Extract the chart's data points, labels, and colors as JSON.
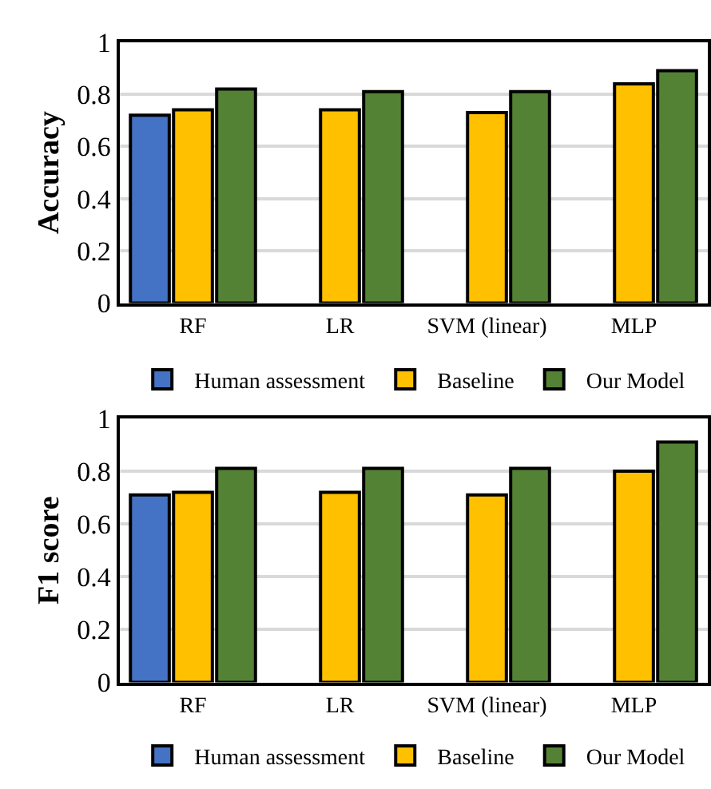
{
  "chart_data": [
    {
      "type": "bar",
      "ylabel": "Accuracy",
      "categories": [
        "RF",
        "LR",
        "SVM (linear)",
        "MLP"
      ],
      "ylim": [
        0,
        1
      ],
      "yticks": [
        0,
        0.2,
        0.4,
        0.6,
        0.8,
        1
      ],
      "grid": "y",
      "legend": "bottom",
      "series": [
        {
          "name": "Human assessment",
          "color": "#4472c4",
          "values": [
            0.72,
            null,
            null,
            null
          ]
        },
        {
          "name": "Baseline",
          "color": "#ffc000",
          "values": [
            0.74,
            0.74,
            0.73,
            0.84
          ]
        },
        {
          "name": "Our Model",
          "color": "#548235",
          "values": [
            0.82,
            0.81,
            0.81,
            0.89
          ]
        }
      ]
    },
    {
      "type": "bar",
      "ylabel": "F1 score",
      "categories": [
        "RF",
        "LR",
        "SVM (linear)",
        "MLP"
      ],
      "ylim": [
        0,
        1
      ],
      "yticks": [
        0,
        0.2,
        0.4,
        0.6,
        0.8,
        1
      ],
      "grid": "y",
      "legend": "bottom",
      "series": [
        {
          "name": "Human assessment",
          "color": "#4472c4",
          "values": [
            0.71,
            null,
            null,
            null
          ]
        },
        {
          "name": "Baseline",
          "color": "#ffc000",
          "values": [
            0.72,
            0.72,
            0.71,
            0.8
          ]
        },
        {
          "name": "Our Model",
          "color": "#548235",
          "values": [
            0.81,
            0.81,
            0.81,
            0.91
          ]
        }
      ]
    }
  ]
}
